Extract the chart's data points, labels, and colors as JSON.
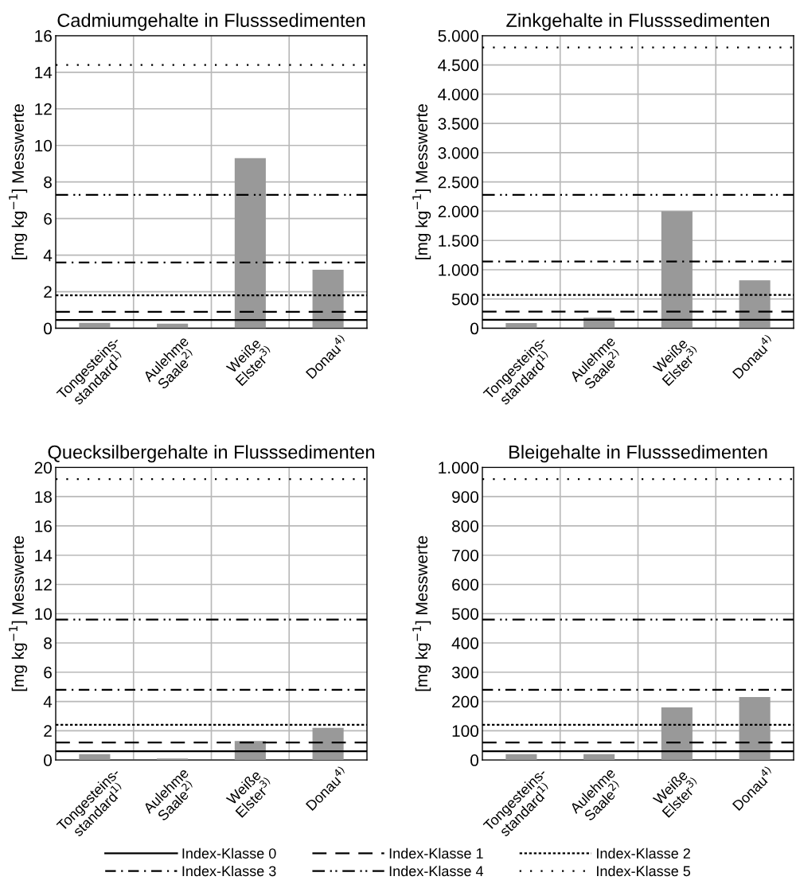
{
  "chart_data": [
    {
      "type": "bar",
      "title": "Cadmiumgehalte in Flusssedimenten",
      "ylabel": "[mg kg$^{−1}$] Messwerte",
      "categories": [
        "Tongesteins-\nstandard$^{1)}$",
        "Aulehme\nSaale$^{2)}$",
        "Weiße\nElster$^{3)}$",
        "Donau$^{4)}$"
      ],
      "values": [
        0.3,
        0.25,
        9.3,
        3.2
      ],
      "color": "#999999",
      "ylim": [
        0,
        16
      ],
      "yticks": [
        0,
        2,
        4,
        6,
        8,
        10,
        12,
        14,
        16
      ],
      "grid": true,
      "legend": "bottom",
      "ref_lines": [
        {
          "axis": "y",
          "value": 0.45,
          "label": "Index-Klasse 0",
          "line_style": "solid",
          "color": "#000000"
        },
        {
          "axis": "y",
          "value": 0.9,
          "label": "Index-Klasse 1",
          "line_style": "dashed",
          "color": "#000000"
        },
        {
          "axis": "y",
          "value": 1.8,
          "label": "Index-Klasse 2",
          "line_style": "densely dotted",
          "color": "#000000"
        },
        {
          "axis": "y",
          "value": 3.6,
          "label": "Index-Klasse 3",
          "line_style": "dashdot",
          "color": "#000000"
        },
        {
          "axis": "y",
          "value": 7.3,
          "label": "Index-Klasse 4",
          "line_style": "dashdotdot",
          "color": "#000000"
        },
        {
          "axis": "y",
          "value": 14.4,
          "label": "Index-Klasse 5",
          "line_style": "dotted",
          "color": "#000000"
        }
      ]
    },
    {
      "type": "bar",
      "title": "Zinkgehalte in Flusssedimenten",
      "ylabel": "[mg kg$^{−1}$] Messwerte",
      "categories": [
        "Tongesteins-\nstandard$^{1)}$",
        "Aulehme\nSaale$^{2)}$",
        "Weiße\nElster$^{3)}$",
        "Donau$^{4)}$"
      ],
      "values": [
        90,
        180,
        2000,
        820
      ],
      "color": "#999999",
      "ylim": [
        0,
        5000
      ],
      "yticks": [
        0,
        500,
        {
          "value": 1000,
          "label": "1.000"
        },
        {
          "value": 1500,
          "label": "1.500"
        },
        {
          "value": 2000,
          "label": "2.000"
        },
        {
          "value": 2500,
          "label": "2.500"
        },
        {
          "value": 3000,
          "label": "3.000"
        },
        {
          "value": 3500,
          "label": "3.500"
        },
        {
          "value": 4000,
          "label": "4.000"
        },
        {
          "value": 4500,
          "label": "4.500"
        },
        {
          "value": 5000,
          "label": "5.000"
        }
      ],
      "grid": true,
      "ref_lines": [
        {
          "axis": "y",
          "value": 145,
          "line_style": "solid",
          "color": "#000000"
        },
        {
          "axis": "y",
          "value": 285,
          "line_style": "dashed",
          "color": "#000000"
        },
        {
          "axis": "y",
          "value": 570,
          "line_style": "densely dotted",
          "color": "#000000"
        },
        {
          "axis": "y",
          "value": 1140,
          "line_style": "dashdot",
          "color": "#000000"
        },
        {
          "axis": "y",
          "value": 2280,
          "line_style": "dashdotdot",
          "color": "#000000"
        },
        {
          "axis": "y",
          "value": 4800,
          "line_style": "dotted",
          "color": "#000000"
        }
      ]
    },
    {
      "type": "bar",
      "title": "Quecksilbergehalte in Flusssedimenten",
      "ylabel": "[mg kg$^{−1}$] Messwerte",
      "categories": [
        "Tongesteins-\nstandard$^{1)}$",
        "Aulehme\nSaale$^{2)}$",
        "Weiße\nElster$^{3)}$",
        "Donau$^{4)}$"
      ],
      "values": [
        0.4,
        0.1,
        1.3,
        2.2
      ],
      "color": "#999999",
      "ylim": [
        0,
        20
      ],
      "yticks": [
        0,
        2,
        4,
        6,
        8,
        10,
        12,
        14,
        16,
        18,
        20
      ],
      "grid": true,
      "ref_lines": [
        {
          "axis": "y",
          "value": 0.6,
          "line_style": "solid",
          "color": "#000000"
        },
        {
          "axis": "y",
          "value": 1.2,
          "line_style": "dashed",
          "color": "#000000"
        },
        {
          "axis": "y",
          "value": 2.4,
          "line_style": "densely dotted",
          "color": "#000000"
        },
        {
          "axis": "y",
          "value": 4.8,
          "line_style": "dashdot",
          "color": "#000000"
        },
        {
          "axis": "y",
          "value": 9.6,
          "line_style": "dashdotdot",
          "color": "#000000"
        },
        {
          "axis": "y",
          "value": 19.2,
          "line_style": "dotted",
          "color": "#000000"
        }
      ]
    },
    {
      "type": "bar",
      "title": "Bleigehalte in Flusssedimenten",
      "ylabel": "[mg kg$^{−1}$] Messwerte",
      "categories": [
        "Tongesteins-\nstandard$^{1)}$",
        "Aulehme\nSaale$^{2)}$",
        "Weiße\nElster$^{3)}$",
        "Donau$^{4)}$"
      ],
      "values": [
        20,
        20,
        180,
        215
      ],
      "color": "#999999",
      "ylim": [
        0,
        1000
      ],
      "yticks": [
        0,
        100,
        200,
        300,
        400,
        500,
        600,
        700,
        800,
        900,
        {
          "value": 1000,
          "label": "1.000"
        }
      ],
      "grid": true,
      "ref_lines": [
        {
          "axis": "y",
          "value": 30,
          "line_style": "solid",
          "color": "#000000"
        },
        {
          "axis": "y",
          "value": 60,
          "line_style": "dashed",
          "color": "#000000"
        },
        {
          "axis": "y",
          "value": 120,
          "line_style": "densely dotted",
          "color": "#000000"
        },
        {
          "axis": "y",
          "value": 240,
          "line_style": "dashdot",
          "color": "#000000"
        },
        {
          "axis": "y",
          "value": 480,
          "line_style": "dashdotdot",
          "color": "#000000"
        },
        {
          "axis": "y",
          "value": 960,
          "line_style": "dotted",
          "color": "#000000"
        }
      ]
    }
  ]
}
